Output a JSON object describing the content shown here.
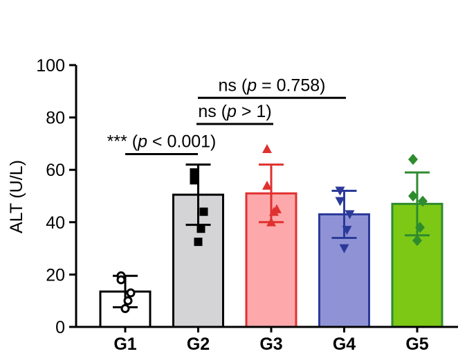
{
  "chart_data": {
    "type": "bar",
    "categories": [
      "G1",
      "G2",
      "G3",
      "G4",
      "G5"
    ],
    "values": [
      13.5,
      50.5,
      51,
      43,
      47
    ],
    "error": [
      6,
      11.5,
      11,
      9,
      12
    ],
    "colors": {
      "fill": [
        "#ffffff",
        "#d4d4d6",
        "#fda9ab",
        "#8f93d6",
        "#7cc815"
      ],
      "stroke": [
        "#000000",
        "#000000",
        "#e03030",
        "#2b3a99",
        "#2e8b2e"
      ],
      "points": [
        "#000000",
        "#000000",
        "#e03030",
        "#2b3a99",
        "#2e8b2e"
      ]
    },
    "markers": [
      "circle-open",
      "square",
      "triangle-up",
      "triangle-down",
      "diamond"
    ],
    "points": [
      [
        19.5,
        18,
        13,
        10,
        7
      ],
      [
        59,
        56,
        44,
        37.5,
        32.5
      ],
      [
        68,
        54,
        45,
        44,
        40
      ],
      [
        52,
        48,
        43,
        37,
        30
      ],
      [
        64,
        50,
        48,
        38,
        33
      ]
    ],
    "ylabel": "ALT (U/L)",
    "xlabel": "",
    "ylim": [
      0,
      100
    ],
    "yticks": [
      0,
      20,
      40,
      60,
      80,
      100
    ],
    "significance": [
      {
        "from": "G1",
        "to": "G2",
        "y": 66,
        "stars": "***",
        "open": "(",
        "p": "p",
        "rest": " < 0.001)"
      },
      {
        "from": "G2",
        "to": "G3",
        "y": 77.5,
        "stars": "ns",
        "open": "(",
        "p": "p",
        "rest": " > 1)"
      },
      {
        "from": "G2",
        "to": "G4",
        "y": 87.5,
        "stars": "ns",
        "open": "(",
        "p": "p",
        "rest": " = 0.758)"
      }
    ]
  }
}
